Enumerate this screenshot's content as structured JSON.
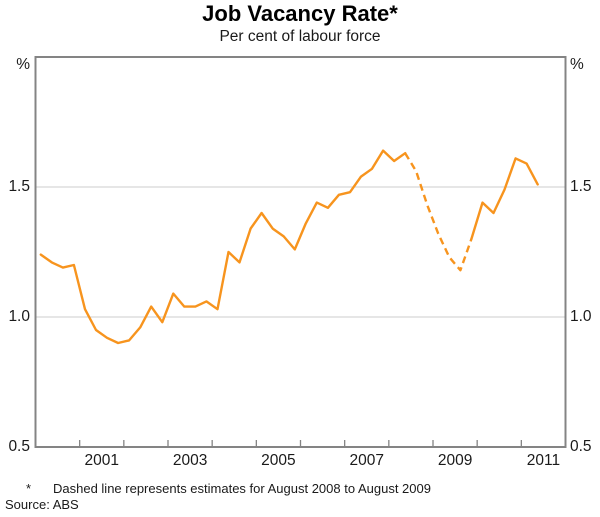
{
  "title": "Job Vacancy Rate*",
  "subtitle": "Per cent of labour force",
  "axes": {
    "left_unit": "%",
    "right_unit": "%"
  },
  "footnote": {
    "marker": "*",
    "text": "Dashed line represents estimates for August 2008 to August 2009",
    "source": "Source: ABS"
  },
  "colors": {
    "line": "#f7941e",
    "frame": "#848484",
    "gridline": "#cccccc",
    "text": "#1a1a1a"
  },
  "chart_data": {
    "type": "line",
    "title": "Job Vacancy Rate*",
    "subtitle": "Per cent of labour force",
    "xlabel": "",
    "ylabel": "%",
    "xlim": [
      2000,
      2012
    ],
    "ylim": [
      0.5,
      2.0
    ],
    "grid": "horizontal",
    "legend_position": "none",
    "x_tick_years": [
      2001,
      2002,
      2003,
      2004,
      2005,
      2006,
      2007,
      2008,
      2009,
      2010,
      2011
    ],
    "x_label_years": [
      2001,
      2003,
      2005,
      2007,
      2009,
      2011
    ],
    "y_ticks": [
      {
        "label": "1.5",
        "value": 1.5,
        "gridline": true
      },
      {
        "label": "1.0",
        "value": 1.0,
        "gridline": true
      },
      {
        "label": "0.5",
        "value": 0.5,
        "gridline": false
      }
    ],
    "series": [
      {
        "name": "Job vacancy rate (per cent of labour force)",
        "color": "#f7941e",
        "points": [
          {
            "date": "Feb 2000",
            "x": 2000.12,
            "y": 1.24,
            "estimate": false
          },
          {
            "date": "May 2000",
            "x": 2000.37,
            "y": 1.21,
            "estimate": false
          },
          {
            "date": "Aug 2000",
            "x": 2000.62,
            "y": 1.19,
            "estimate": false
          },
          {
            "date": "Nov 2000",
            "x": 2000.87,
            "y": 1.2,
            "estimate": false
          },
          {
            "date": "Feb 2001",
            "x": 2001.12,
            "y": 1.03,
            "estimate": false
          },
          {
            "date": "May 2001",
            "x": 2001.37,
            "y": 0.95,
            "estimate": false
          },
          {
            "date": "Aug 2001",
            "x": 2001.62,
            "y": 0.92,
            "estimate": false
          },
          {
            "date": "Nov 2001",
            "x": 2001.87,
            "y": 0.9,
            "estimate": false
          },
          {
            "date": "Feb 2002",
            "x": 2002.12,
            "y": 0.91,
            "estimate": false
          },
          {
            "date": "May 2002",
            "x": 2002.37,
            "y": 0.96,
            "estimate": false
          },
          {
            "date": "Aug 2002",
            "x": 2002.62,
            "y": 1.04,
            "estimate": false
          },
          {
            "date": "Nov 2002",
            "x": 2002.87,
            "y": 0.98,
            "estimate": false
          },
          {
            "date": "Feb 2003",
            "x": 2003.12,
            "y": 1.09,
            "estimate": false
          },
          {
            "date": "May 2003",
            "x": 2003.37,
            "y": 1.04,
            "estimate": false
          },
          {
            "date": "Aug 2003",
            "x": 2003.62,
            "y": 1.04,
            "estimate": false
          },
          {
            "date": "Nov 2003",
            "x": 2003.87,
            "y": 1.06,
            "estimate": false
          },
          {
            "date": "Feb 2004",
            "x": 2004.12,
            "y": 1.03,
            "estimate": false
          },
          {
            "date": "May 2004",
            "x": 2004.37,
            "y": 1.25,
            "estimate": false
          },
          {
            "date": "Aug 2004",
            "x": 2004.62,
            "y": 1.21,
            "estimate": false
          },
          {
            "date": "Nov 2004",
            "x": 2004.87,
            "y": 1.34,
            "estimate": false
          },
          {
            "date": "Feb 2005",
            "x": 2005.12,
            "y": 1.4,
            "estimate": false
          },
          {
            "date": "May 2005",
            "x": 2005.37,
            "y": 1.34,
            "estimate": false
          },
          {
            "date": "Aug 2005",
            "x": 2005.62,
            "y": 1.31,
            "estimate": false
          },
          {
            "date": "Nov 2005",
            "x": 2005.87,
            "y": 1.26,
            "estimate": false
          },
          {
            "date": "Feb 2006",
            "x": 2006.12,
            "y": 1.36,
            "estimate": false
          },
          {
            "date": "May 2006",
            "x": 2006.37,
            "y": 1.44,
            "estimate": false
          },
          {
            "date": "Aug 2006",
            "x": 2006.62,
            "y": 1.42,
            "estimate": false
          },
          {
            "date": "Nov 2006",
            "x": 2006.87,
            "y": 1.47,
            "estimate": false
          },
          {
            "date": "Feb 2007",
            "x": 2007.12,
            "y": 1.48,
            "estimate": false
          },
          {
            "date": "May 2007",
            "x": 2007.37,
            "y": 1.54,
            "estimate": false
          },
          {
            "date": "Aug 2007",
            "x": 2007.62,
            "y": 1.57,
            "estimate": false
          },
          {
            "date": "Nov 2007",
            "x": 2007.87,
            "y": 1.64,
            "estimate": false
          },
          {
            "date": "Feb 2008",
            "x": 2008.12,
            "y": 1.6,
            "estimate": false
          },
          {
            "date": "May 2008",
            "x": 2008.37,
            "y": 1.63,
            "estimate": false
          },
          {
            "date": "Aug 2008",
            "x": 2008.62,
            "y": 1.56,
            "estimate": true
          },
          {
            "date": "Nov 2008",
            "x": 2008.87,
            "y": 1.43,
            "estimate": true
          },
          {
            "date": "Feb 2009",
            "x": 2009.12,
            "y": 1.32,
            "estimate": true
          },
          {
            "date": "May 2009",
            "x": 2009.37,
            "y": 1.23,
            "estimate": true
          },
          {
            "date": "Aug 2009",
            "x": 2009.62,
            "y": 1.18,
            "estimate": true
          },
          {
            "date": "Nov 2009",
            "x": 2009.87,
            "y": 1.3,
            "estimate": false
          },
          {
            "date": "Feb 2010",
            "x": 2010.12,
            "y": 1.44,
            "estimate": false
          },
          {
            "date": "May 2010",
            "x": 2010.37,
            "y": 1.4,
            "estimate": false
          },
          {
            "date": "Aug 2010",
            "x": 2010.62,
            "y": 1.49,
            "estimate": false
          },
          {
            "date": "Nov 2010",
            "x": 2010.87,
            "y": 1.61,
            "estimate": false
          },
          {
            "date": "Feb 2011",
            "x": 2011.12,
            "y": 1.59,
            "estimate": false
          },
          {
            "date": "May 2011",
            "x": 2011.37,
            "y": 1.51,
            "estimate": false
          }
        ]
      }
    ]
  }
}
